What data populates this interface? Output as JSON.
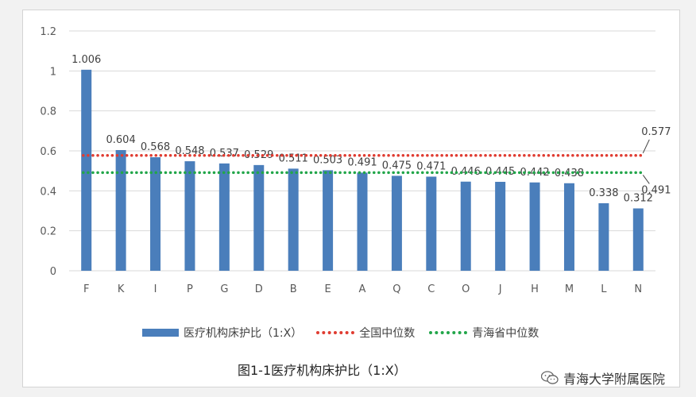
{
  "chart_data": {
    "type": "bar",
    "categories": [
      "F",
      "K",
      "I",
      "P",
      "G",
      "D",
      "B",
      "E",
      "A",
      "Q",
      "C",
      "O",
      "J",
      "H",
      "M",
      "L",
      "N"
    ],
    "series": [
      {
        "name": "医疗机构床护比（1:X）",
        "values": [
          1.006,
          0.604,
          0.568,
          0.548,
          0.537,
          0.529,
          0.511,
          0.503,
          0.491,
          0.475,
          0.471,
          0.446,
          0.445,
          0.442,
          0.438,
          0.338,
          0.312
        ],
        "data_labels": [
          "1.006",
          "0.604",
          "0.568",
          "0.548",
          "0.537",
          "0.529",
          "0.511",
          "0.503",
          "0.491",
          "0.475",
          "0.471",
          "0.446",
          "0.445",
          "0.442",
          "0.438",
          "0.338",
          "0.312"
        ],
        "color": "#4a7ebb"
      }
    ],
    "reference_lines": [
      {
        "name": "全国中位数",
        "value": 0.577,
        "label": "0.577",
        "color": "#e03c31",
        "style": "dotted"
      },
      {
        "name": "青海省中位数",
        "value": 0.491,
        "label": "0.491",
        "color": "#22a64a",
        "style": "dotted"
      }
    ],
    "y_ticks": [
      "0",
      "0.2",
      "0.4",
      "0.6",
      "0.8",
      "1",
      "1.2"
    ],
    "ylim": [
      0,
      1.2
    ],
    "grid": true,
    "legend": "bottom",
    "title": "",
    "xlabel": "",
    "ylabel": ""
  },
  "caption": "图1-1医疗机构床护比（1:X）",
  "watermark": {
    "text": "青海大学附属医院",
    "icon": "wechat-icon"
  }
}
